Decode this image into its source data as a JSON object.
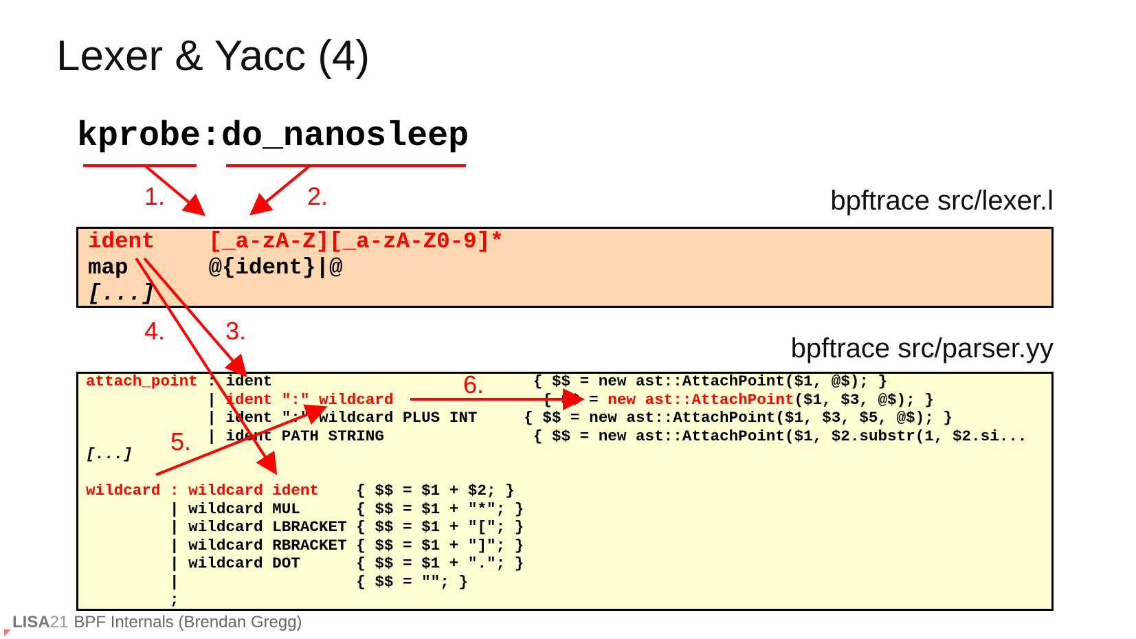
{
  "title": "Lexer & Yacc (4)",
  "probe": {
    "left": "kprobe",
    "sep": ":",
    "right": "do_nanosleep"
  },
  "lexer_label": "bpftrace src/lexer.l",
  "parser_label": "bpftrace src/parser.yy",
  "lexer_lines": [
    [
      {
        "t": "ident    [_a-zA-Z][_a-zA-Z0-9]*",
        "c": "red"
      }
    ],
    [
      {
        "t": "map      @{ident}|@",
        "c": ""
      }
    ],
    [
      {
        "t": "[...]",
        "c": "it"
      }
    ]
  ],
  "parser_lines": [
    [
      {
        "t": "attach_point",
        "c": "red"
      },
      {
        "t": " : ident                            { $$ = new ast::AttachPoint($1, @$); }",
        "c": ""
      }
    ],
    [
      {
        "t": "             | ",
        "c": ""
      },
      {
        "t": "ident \":\" wildcard",
        "c": "red"
      },
      {
        "t": "                { $$ = ",
        "c": ""
      },
      {
        "t": "new ast::AttachPoint",
        "c": "red"
      },
      {
        "t": "($1, $3, @$); }",
        "c": ""
      }
    ],
    [
      {
        "t": "             | ident \":\" wildcard PLUS INT     { $$ = new ast::AttachPoint($1, $3, $5, @$); }",
        "c": ""
      }
    ],
    [
      {
        "t": "             | ident PATH STRING                { $$ = new ast::AttachPoint($1, $2.substr(1, $2.si...",
        "c": ""
      }
    ],
    [
      {
        "t": "[...]",
        "c": "it"
      }
    ],
    [
      {
        "t": " ",
        "c": ""
      }
    ],
    [
      {
        "t": "wildcard : wildcard ident",
        "c": "red"
      },
      {
        "t": "    { $$ = $1 + $2; }",
        "c": ""
      }
    ],
    [
      {
        "t": "         | wildcard MUL      { $$ = $1 + \"*\"; }",
        "c": ""
      }
    ],
    [
      {
        "t": "         | wildcard LBRACKET { $$ = $1 + \"[\"; }",
        "c": ""
      }
    ],
    [
      {
        "t": "         | wildcard RBRACKET { $$ = $1 + \"]\"; }",
        "c": ""
      }
    ],
    [
      {
        "t": "         | wildcard DOT      { $$ = $1 + \".\"; }",
        "c": ""
      }
    ],
    [
      {
        "t": "         |                   { $$ = \"\"; }",
        "c": ""
      }
    ],
    [
      {
        "t": "         ;",
        "c": ""
      }
    ]
  ],
  "steps": [
    "1.",
    "2.",
    "3.",
    "4.",
    "5.",
    "6."
  ],
  "footer": {
    "brand": "LISA",
    "year": "21",
    "text": "BPF Internals (Brendan Gregg)"
  },
  "colors": {
    "accent": "#ff0000",
    "lexer_bg": "#fdd8b0",
    "parser_bg": "#fefed2"
  }
}
